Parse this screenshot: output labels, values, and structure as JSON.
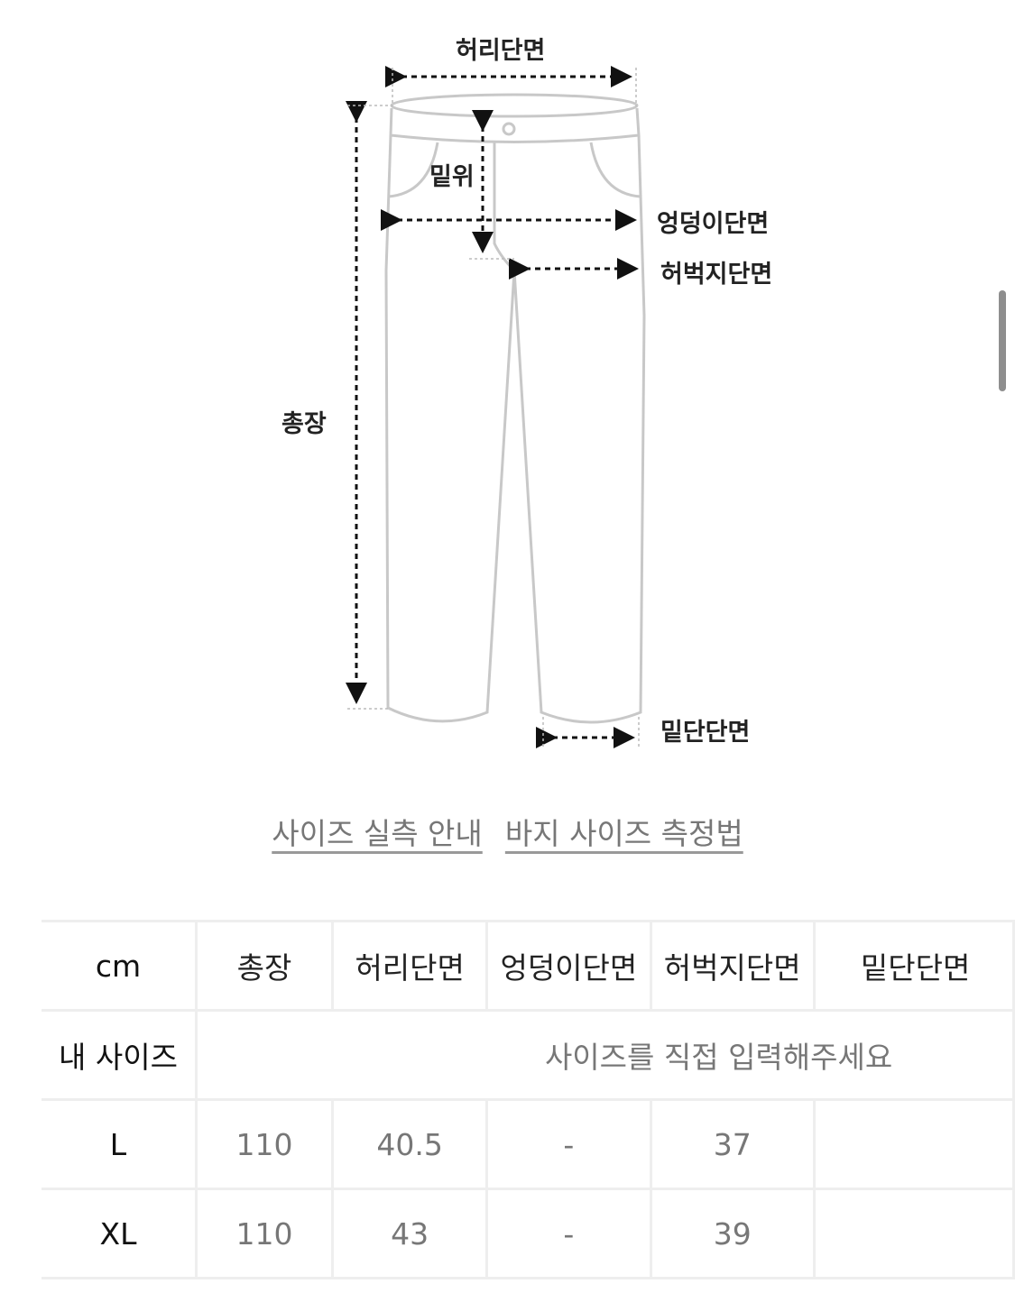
{
  "diagram": {
    "labels": {
      "waist": "허리단면",
      "rise": "밑위",
      "hip": "엉덩이단면",
      "thigh": "허벅지단면",
      "length": "총장",
      "hem": "밑단단면"
    }
  },
  "links": [
    "사이즈 실측 안내",
    "바지 사이즈 측정법"
  ],
  "table": {
    "unit": "cm",
    "headers": [
      "총장",
      "허리단면",
      "엉덩이단면",
      "허벅지단면",
      "밑단단면"
    ],
    "my_size": {
      "label": "내 사이즈",
      "placeholder": "사이즈를 직접 입력해주세요"
    },
    "rows": [
      {
        "size": "L",
        "values": [
          "110",
          "40.5",
          "-",
          "37",
          ""
        ]
      },
      {
        "size": "XL",
        "values": [
          "110",
          "43",
          "-",
          "39",
          ""
        ]
      }
    ]
  }
}
